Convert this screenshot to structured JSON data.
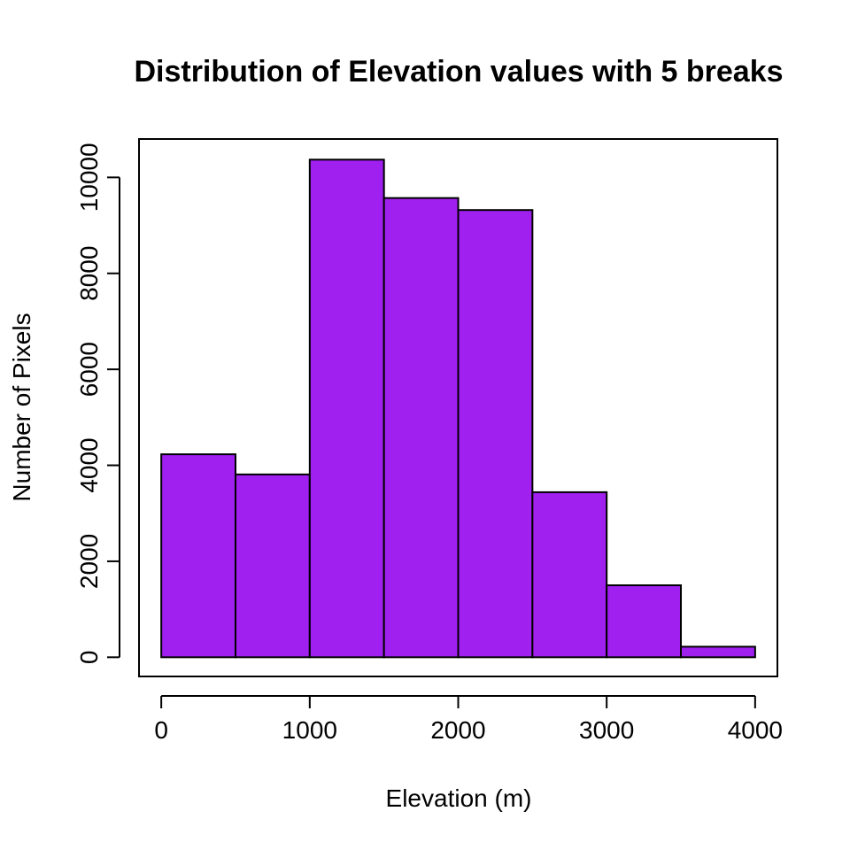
{
  "chart_data": {
    "type": "bar",
    "title": "Distribution of Elevation values with 5 breaks",
    "xlabel": "Elevation (m)",
    "ylabel": "Number of Pixels",
    "bin_edges": [
      0,
      500,
      1000,
      1500,
      2000,
      2500,
      3000,
      3500,
      4000
    ],
    "values": [
      4230,
      3810,
      10370,
      9570,
      9320,
      3440,
      1500,
      220
    ],
    "xlim": [
      -150,
      4150
    ],
    "ylim": [
      -400,
      10800
    ],
    "x_ticks": [
      0,
      1000,
      2000,
      3000,
      4000
    ],
    "x_tick_labels": [
      "0",
      "1000",
      "2000",
      "3000",
      "4000"
    ],
    "y_ticks": [
      0,
      2000,
      4000,
      6000,
      8000,
      10000
    ],
    "y_tick_labels": [
      "0",
      "2000",
      "4000",
      "6000",
      "8000",
      "10000"
    ],
    "bar_color": "#a020f0",
    "bar_edge_color": "#000000",
    "grid": false,
    "legend": "none"
  }
}
